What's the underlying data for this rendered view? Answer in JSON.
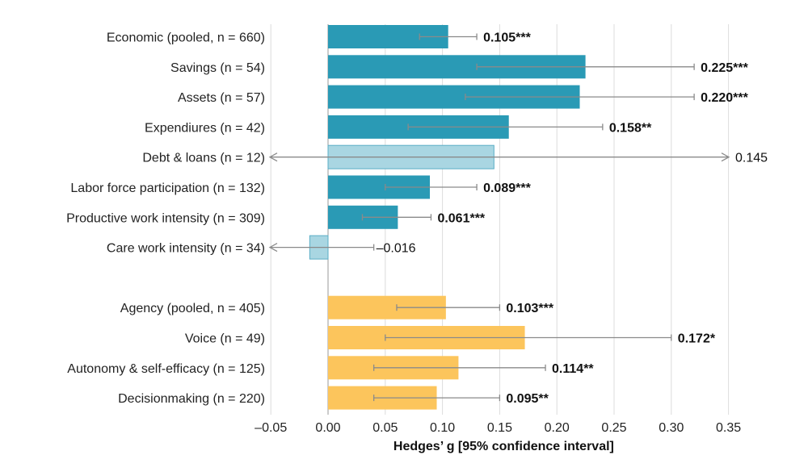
{
  "chart_data": {
    "type": "bar",
    "orientation": "horizontal",
    "xlabel": "Hedges’ g [95% confidence interval]",
    "xlim": [
      -0.05,
      0.35
    ],
    "xticks": [
      -0.05,
      0.0,
      0.05,
      0.1,
      0.15,
      0.2,
      0.25,
      0.3,
      0.35
    ],
    "xtick_labels": [
      "–0.05",
      "0.00",
      "0.05",
      "0.10",
      "0.15",
      "0.20",
      "0.25",
      "0.30",
      "0.35"
    ],
    "grid": "vertical",
    "colors": {
      "economic": "#2a9ab5",
      "economic_light": "#a9d6e2",
      "agency": "#fcc55c",
      "error_bar": "#8a8a8a"
    },
    "groups": [
      {
        "name": "Economic",
        "color_key": "economic",
        "bars": [
          {
            "label": "Economic (pooled, n = 660)",
            "value": 0.105,
            "ci": [
              0.08,
              0.13
            ],
            "display": "0.105***",
            "bold": true,
            "light": false
          },
          {
            "label": "Savings (n = 54)",
            "value": 0.225,
            "ci": [
              0.13,
              0.32
            ],
            "display": "0.225***",
            "bold": true,
            "light": false
          },
          {
            "label": "Assets (n = 57)",
            "value": 0.22,
            "ci": [
              0.12,
              0.32
            ],
            "display": "0.220***",
            "bold": true,
            "light": false
          },
          {
            "label": "Expendiures (n = 42)",
            "value": 0.158,
            "ci": [
              0.07,
              0.24
            ],
            "display": "0.158**",
            "bold": true,
            "light": false
          },
          {
            "label": "Debt & loans (n = 12)",
            "value": 0.145,
            "ci": [
              -0.05,
              0.35
            ],
            "display": "0.145",
            "bold": false,
            "light": true,
            "ci_extends_beyond": true
          },
          {
            "label": "Labor force participation (n = 132)",
            "value": 0.089,
            "ci": [
              0.05,
              0.13
            ],
            "display": "0.089***",
            "bold": true,
            "light": false
          },
          {
            "label": "Productive work intensity (n = 309)",
            "value": 0.061,
            "ci": [
              0.03,
              0.09
            ],
            "display": "0.061***",
            "bold": true,
            "light": false
          },
          {
            "label": "Care work intensity (n = 34)",
            "value": -0.016,
            "ci": [
              -0.05,
              0.04
            ],
            "display": "–0.016",
            "bold": false,
            "light": true,
            "ci_extends_beyond_left": true
          }
        ]
      },
      {
        "name": "Agency",
        "color_key": "agency",
        "bars": [
          {
            "label": "Agency (pooled, n = 405)",
            "value": 0.103,
            "ci": [
              0.06,
              0.15
            ],
            "display": "0.103***",
            "bold": true,
            "light": false
          },
          {
            "label": "Voice (n = 49)",
            "value": 0.172,
            "ci": [
              0.05,
              0.3
            ],
            "display": "0.172*",
            "bold": true,
            "light": false
          },
          {
            "label": "Autonomy & self-efficacy (n = 125)",
            "value": 0.114,
            "ci": [
              0.04,
              0.19
            ],
            "display": "0.114**",
            "bold": true,
            "light": false
          },
          {
            "label": "Decisionmaking (n = 220)",
            "value": 0.095,
            "ci": [
              0.04,
              0.15
            ],
            "display": "0.095**",
            "bold": true,
            "light": false
          }
        ]
      }
    ]
  }
}
